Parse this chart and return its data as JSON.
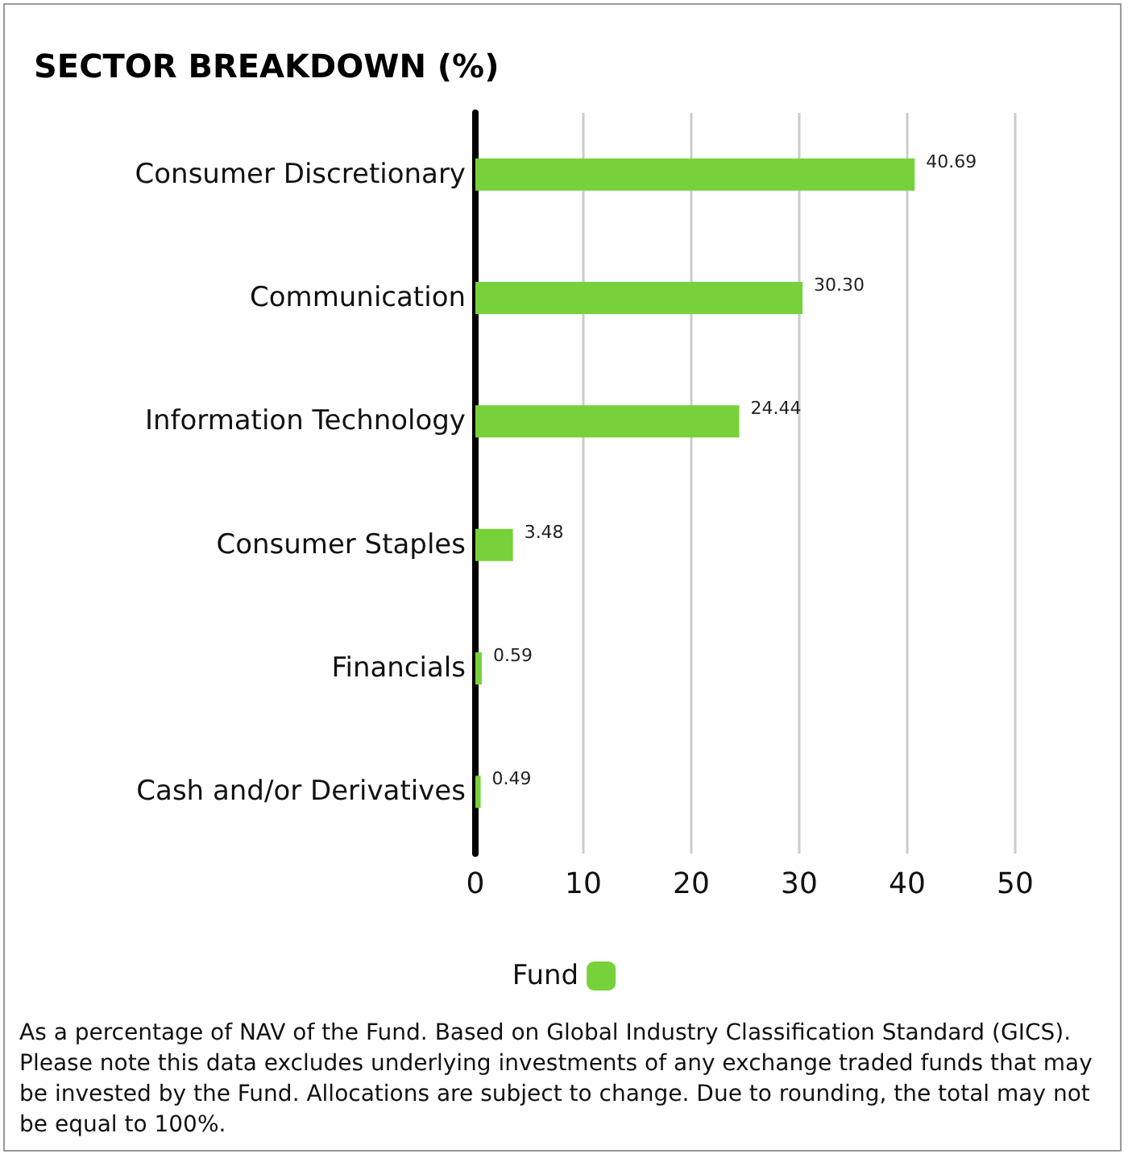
{
  "chart_data": {
    "type": "bar",
    "orientation": "horizontal",
    "title": "SECTOR BREAKDOWN (%)",
    "categories": [
      "Consumer Discretionary",
      "Communication",
      "Information Technology",
      "Consumer Staples",
      "Financials",
      "Cash and/or Derivatives"
    ],
    "series": [
      {
        "name": "Fund",
        "color": "#77d13a",
        "values": [
          40.69,
          30.3,
          24.44,
          3.48,
          0.59,
          0.49
        ]
      }
    ],
    "value_labels": [
      "40.69",
      "30.30",
      "24.44",
      "3.48",
      "0.59",
      "0.49"
    ],
    "xlim": [
      0,
      50
    ],
    "xticks": [
      0,
      10,
      20,
      30,
      40,
      50
    ],
    "grid": "x",
    "legend": "bottom",
    "annotations": [
      "As a percentage of NAV of the Fund. Based on Global Industry Classification Standard (GICS). Please note this data excludes underlying investments of any exchange traded funds that may be invested by the Fund. Allocations are subject to change. Due to rounding, the total may not be equal to 100%."
    ]
  }
}
